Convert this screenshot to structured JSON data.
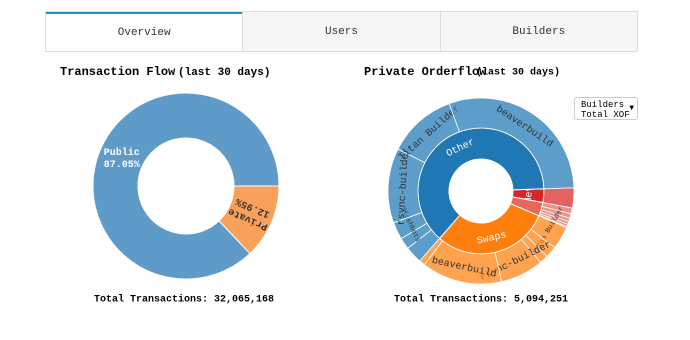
{
  "tabs": [
    "Overview",
    "Users",
    "Builders"
  ],
  "dropdown": [
    "Builders",
    "Total XOF"
  ],
  "chart_data": [
    {
      "type": "pie",
      "title": "Transaction Flow",
      "subtitle": "(last 30 days)",
      "categories": [
        "Private",
        "Public"
      ],
      "values": [
        12.95,
        87.05
      ],
      "value_labels": [
        "12.95%",
        "87.05%"
      ],
      "colors": [
        "#f9a05a",
        "#5f9bc9"
      ],
      "footer": "Total Transactions: 32,065,168"
    },
    {
      "type": "sunburst",
      "title": "Private Orderflow",
      "subtitle": "(last 30 days)",
      "footer": "Total Transactions: 5,094,251",
      "sectors": [
        {
          "name": "Mev",
          "color": "#d62728",
          "value": 3.5,
          "children": [
            {
              "name": null,
              "value": 3.5
            }
          ]
        },
        {
          "name": null,
          "color": "#e8665a",
          "value": 3.5,
          "children": [
            {
              "name": null,
              "value": 1
            },
            {
              "name": null,
              "value": 0.8
            },
            {
              "name": null,
              "value": 0.6
            },
            {
              "name": null,
              "value": 0.5
            },
            {
              "name": null,
              "value": 0.4
            },
            {
              "name": null,
              "value": 0.2
            }
          ]
        },
        {
          "name": "Swaps",
          "color": "#ff7f0e",
          "value": 30,
          "children": [
            {
              "name": "Titan Builder",
              "value": 4
            },
            {
              "name": null,
              "value": 2
            },
            {
              "name": null,
              "value": 1.5
            },
            {
              "name": "rsync-builder",
              "value": 7.5
            },
            {
              "name": "beaverbuild",
              "value": 14
            },
            {
              "name": null,
              "value": 1
            }
          ]
        },
        {
          "name": "Other",
          "color": "#1f77b4",
          "value": 63,
          "children": [
            {
              "name": null,
              "value": 3
            },
            {
              "name": null,
              "value": 2
            },
            {
              "name": "flashbots",
              "value": 3
            },
            {
              "name": "rsync-builder",
              "value": 13
            },
            {
              "name": "Titan Builder",
              "value": 12
            },
            {
              "name": "beaverbuild",
              "value": 30
            }
          ]
        }
      ]
    }
  ]
}
